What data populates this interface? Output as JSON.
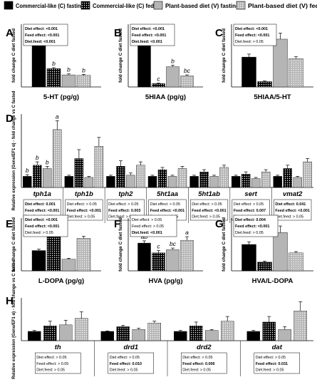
{
  "legend": [
    {
      "label": "Commercial-like (C) fasting",
      "color": "#000000",
      "pattern": "solid"
    },
    {
      "label": "Commercial-like (C) fed",
      "color": "#000000",
      "pattern": "dots-white"
    },
    {
      "label": "Plant-based diet (V) fasting",
      "color": "#bdbdbd",
      "pattern": "solid"
    },
    {
      "label": "Plant-based diet (V) fed",
      "color": "#bdbdbd",
      "pattern": "dots-white"
    }
  ],
  "chart_data": [
    {
      "panel": "A",
      "type": "bar",
      "xlabel": "5-HT (pg/g)",
      "ylabel": "fold change C diet fasted",
      "ylim": [
        0,
        1.3
      ],
      "categories": [
        ""
      ],
      "series": [
        {
          "name": "Commercial-like (C) fasting",
          "values": [
            1.0
          ],
          "err": [
            0.07
          ],
          "letters": [
            "a"
          ]
        },
        {
          "name": "Commercial-like (C) fed",
          "values": [
            0.38
          ],
          "err": [
            0.02
          ],
          "letters": [
            "b"
          ]
        },
        {
          "name": "Plant-based diet (V) fasting",
          "values": [
            0.25
          ],
          "err": [
            0.02
          ],
          "letters": [
            "b"
          ]
        },
        {
          "name": "Plant-based diet (V) fed",
          "values": [
            0.24
          ],
          "err": [
            0.02
          ],
          "letters": [
            "b"
          ]
        }
      ],
      "stats": [
        {
          "label": "Diet effect: ",
          "value": "<0.001",
          "bold": true
        },
        {
          "label": "Feed effect: ",
          "value": "<0.001",
          "bold": true
        },
        {
          "label": "Diet.feed: ",
          "value": "<0.001",
          "bold": true
        }
      ]
    },
    {
      "panel": "B",
      "type": "bar",
      "xlabel": "5HIAA (pg/g)",
      "ylabel": "fold change C diet fasted",
      "ylim": [
        0,
        1.3
      ],
      "categories": [
        ""
      ],
      "series": [
        {
          "name": "Commercial-like (C) fasting",
          "values": [
            1.0
          ],
          "err": [
            0.1
          ],
          "letters": [
            "a"
          ]
        },
        {
          "name": "Commercial-like (C) fed",
          "values": [
            0.07
          ],
          "err": [
            0.01
          ],
          "letters": [
            "c"
          ]
        },
        {
          "name": "Plant-based diet (V) fasting",
          "values": [
            0.42
          ],
          "err": [
            0.03
          ],
          "letters": [
            "b"
          ]
        },
        {
          "name": "Plant-based diet (V) fed",
          "values": [
            0.23
          ],
          "err": [
            0.02
          ],
          "letters": [
            "bc"
          ]
        }
      ],
      "stats": [
        {
          "label": "Diet effect: ",
          "value": "<0.001",
          "bold": true
        },
        {
          "label": "Feed effect: ",
          "value": "<0.001",
          "bold": true
        },
        {
          "label": "Diet.feed: ",
          "value": "<0.001",
          "bold": true
        }
      ]
    },
    {
      "panel": "C",
      "type": "bar",
      "xlabel": "5HIAA/5-HT",
      "ylabel": "fold change C diet fasted",
      "ylim": [
        0,
        2.1
      ],
      "categories": [
        ""
      ],
      "series": [
        {
          "name": "Commercial-like (C) fasting",
          "values": [
            1.0
          ],
          "err": [
            0.1
          ],
          "letters": [
            ""
          ]
        },
        {
          "name": "Commercial-like (C) fed",
          "values": [
            0.18
          ],
          "err": [
            0.02
          ],
          "letters": [
            ""
          ]
        },
        {
          "name": "Plant-based diet (V) fasting",
          "values": [
            1.6
          ],
          "err": [
            0.2
          ],
          "letters": [
            ""
          ]
        },
        {
          "name": "Plant-based diet (V) fed",
          "values": [
            0.95
          ],
          "err": [
            0.06
          ],
          "letters": [
            ""
          ]
        }
      ],
      "stats": [
        {
          "label": "Diet effect: ",
          "value": "<0.001",
          "bold": true
        },
        {
          "label": "Feed effect: ",
          "value": "<0.001",
          "bold": true
        },
        {
          "label": "Diet.feed: ",
          "value": "> 0.05",
          "bold": false
        }
      ]
    },
    {
      "panel": "D",
      "type": "bar",
      "ylabel": "Relative expression (Gene/EF1 α) - fold change vs C fasted",
      "ylim": [
        0,
        6.6
      ],
      "categories": [
        "tph1a",
        "tph1b",
        "tph2",
        "5ht1aa",
        "5ht1ab",
        "sert",
        "vmat2"
      ],
      "series": [
        {
          "name": "Commercial-like (C) fasting",
          "values": [
            1.0,
            1.0,
            1.0,
            1.0,
            1.0,
            1.0,
            1.0
          ],
          "err": [
            0.15,
            0.1,
            0.1,
            0.1,
            0.1,
            0.1,
            0.1
          ],
          "letters": [
            "b",
            "",
            "",
            "",
            "",
            "",
            ""
          ]
        },
        {
          "name": "Commercial-like (C) fed",
          "values": [
            2.0,
            2.6,
            1.9,
            1.6,
            1.4,
            1.2,
            1.7
          ],
          "err": [
            0.3,
            0.8,
            0.5,
            0.2,
            0.2,
            0.2,
            0.3
          ],
          "letters": [
            "b",
            "",
            "",
            "",
            "",
            "",
            ""
          ]
        },
        {
          "name": "Plant-based diet (V) fasting",
          "values": [
            1.7,
            0.9,
            1.1,
            1.0,
            1.0,
            0.8,
            0.9
          ],
          "err": [
            0.2,
            0.1,
            0.2,
            0.1,
            0.1,
            0.1,
            0.1
          ],
          "letters": [
            "b",
            "",
            "",
            "",
            "",
            "",
            ""
          ]
        },
        {
          "name": "Plant-based diet (V) fed",
          "values": [
            5.2,
            3.7,
            2.0,
            1.7,
            1.8,
            1.4,
            2.3
          ],
          "err": [
            0.8,
            0.8,
            0.3,
            0.2,
            0.2,
            0.2,
            0.3
          ],
          "letters": [
            "a",
            "",
            "",
            "",
            "",
            "",
            ""
          ]
        }
      ],
      "stats": [
        [
          {
            "label": "Diet effect: ",
            "value": "0.001",
            "bold": true
          },
          {
            "label": "Feed effect: ",
            "value": "<0.001",
            "bold": true
          },
          {
            "label": "Diet.feed: ",
            "value": "0.029",
            "bold": true
          }
        ],
        [
          {
            "label": "Diet effect: ",
            "value": "> 0.05",
            "bold": false
          },
          {
            "label": "Feed effect: ",
            "value": "<0.001",
            "bold": true
          },
          {
            "label": "Diet.feed: ",
            "value": "> 0.05",
            "bold": false
          }
        ],
        [
          {
            "label": "Diet effect: ",
            "value": "> 0.05",
            "bold": false
          },
          {
            "label": "Feed effect: ",
            "value": "0.003",
            "bold": true
          },
          {
            "label": "Diet.feed: ",
            "value": "> 0.05",
            "bold": false
          }
        ],
        [
          {
            "label": "Diet effect: ",
            "value": "> 0.05",
            "bold": false
          },
          {
            "label": "Feed effect: ",
            "value": "<0.001",
            "bold": true
          },
          {
            "label": "Diet.feed: ",
            "value": "> 0.05",
            "bold": false
          }
        ],
        [
          {
            "label": "Diet effect: ",
            "value": "> 0.05",
            "bold": false
          },
          {
            "label": "Feed effect: ",
            "value": "<0.001",
            "bold": true
          },
          {
            "label": "Diet.feed: ",
            "value": "> 0.05",
            "bold": false
          }
        ],
        [
          {
            "label": "Diet effect: ",
            "value": "> 0.05",
            "bold": false
          },
          {
            "label": "Feed effect: ",
            "value": "0.007",
            "bold": true
          },
          {
            "label": "Diet.feed: ",
            "value": "> 0.05",
            "bold": false
          }
        ],
        [
          {
            "label": "Diet effect: ",
            "value": "0.041",
            "bold": true
          },
          {
            "label": "Feed effect: ",
            "value": "<0.001",
            "bold": true
          },
          {
            "label": "Diet.feed: ",
            "value": "> 0.05",
            "bold": false
          }
        ]
      ]
    },
    {
      "panel": "E",
      "type": "bar",
      "xlabel": "L-DOPA (pg/g)",
      "ylabel": "fold change C diet fasted",
      "ylim": [
        0,
        2.6
      ],
      "categories": [
        ""
      ],
      "series": [
        {
          "name": "Commercial-like (C) fasting",
          "values": [
            1.0
          ],
          "err": [
            0.07
          ],
          "letters": [
            ""
          ]
        },
        {
          "name": "Commercial-like (C) fed",
          "values": [
            2.0
          ],
          "err": [
            0.08
          ],
          "letters": [
            ""
          ]
        },
        {
          "name": "Plant-based diet (V) fasting",
          "values": [
            0.57
          ],
          "err": [
            0.05
          ],
          "letters": [
            ""
          ]
        },
        {
          "name": "Plant-based diet (V) fed",
          "values": [
            1.6
          ],
          "err": [
            0.1
          ],
          "letters": [
            ""
          ]
        }
      ],
      "stats": [
        {
          "label": "Diet effect: ",
          "value": "<0.001",
          "bold": true
        },
        {
          "label": "Feed effect: ",
          "value": "<0.001",
          "bold": true
        },
        {
          "label": "Diet.feed: ",
          "value": "> 0.05",
          "bold": false
        }
      ]
    },
    {
      "panel": "F",
      "type": "bar",
      "xlabel": "HVA (pg/g)",
      "ylabel": "fold change C diet fasted",
      "ylim": [
        0,
        1.9
      ],
      "categories": [
        ""
      ],
      "series": [
        {
          "name": "Commercial-like (C) fasting",
          "values": [
            1.0
          ],
          "err": [
            0.08
          ],
          "letters": [
            "ab"
          ]
        },
        {
          "name": "Commercial-like (C) fed",
          "values": [
            0.65
          ],
          "err": [
            0.08
          ],
          "letters": [
            "c"
          ]
        },
        {
          "name": "Plant-based diet (V) fasting",
          "values": [
            0.76
          ],
          "err": [
            0.06
          ],
          "letters": [
            "bc"
          ]
        },
        {
          "name": "Plant-based diet (V) fed",
          "values": [
            1.1
          ],
          "err": [
            0.13
          ],
          "letters": [
            "a"
          ]
        }
      ],
      "stats": [
        {
          "label": "Diet effect: ",
          "value": "> 0.05",
          "bold": false
        },
        {
          "label": "Feed effect: ",
          "value": "> 0.05",
          "bold": false
        },
        {
          "label": "Diet.feed: ",
          "value": "<0.001",
          "bold": true
        }
      ]
    },
    {
      "panel": "G",
      "type": "bar",
      "xlabel": "HVA/L-DOPA",
      "ylabel": "fold change C diet fasted",
      "ylim": [
        0,
        2.0
      ],
      "categories": [
        ""
      ],
      "series": [
        {
          "name": "Commercial-like (C) fasting",
          "values": [
            1.0
          ],
          "err": [
            0.1
          ],
          "letters": [
            ""
          ]
        },
        {
          "name": "Commercial-like (C) fed",
          "values": [
            0.33
          ],
          "err": [
            0.04
          ],
          "letters": [
            ""
          ]
        },
        {
          "name": "Plant-based diet (V) fasting",
          "values": [
            1.45
          ],
          "err": [
            0.25
          ],
          "letters": [
            ""
          ]
        },
        {
          "name": "Plant-based diet (V) fed",
          "values": [
            0.68
          ],
          "err": [
            0.05
          ],
          "letters": [
            ""
          ]
        }
      ],
      "stats": [
        {
          "label": "Diet effect: ",
          "value": "0.004",
          "bold": true
        },
        {
          "label": "Feed effect: ",
          "value": "<0.001",
          "bold": true
        },
        {
          "label": "Diet.feed: ",
          "value": "> 0.05",
          "bold": false
        }
      ]
    },
    {
      "panel": "H",
      "type": "bar",
      "ylabel": "Relative expression (Gene/EF1 α) - fold change vs C fasted",
      "ylim": [
        0,
        4.6
      ],
      "categories": [
        "th",
        "drd1",
        "drd2",
        "dat"
      ],
      "series": [
        {
          "name": "Commercial-like (C) fasting",
          "values": [
            1.0,
            1.0,
            1.0,
            1.0
          ],
          "err": [
            0.1,
            0.05,
            0.1,
            0.1
          ],
          "letters": [
            "",
            "",
            "",
            ""
          ]
        },
        {
          "name": "Commercial-like (C) fed",
          "values": [
            1.6,
            1.5,
            1.6,
            2.0
          ],
          "err": [
            0.5,
            0.15,
            0.4,
            0.6
          ],
          "letters": [
            "",
            "",
            "",
            ""
          ]
        },
        {
          "name": "Plant-based diet (V) fasting",
          "values": [
            1.7,
            1.2,
            1.1,
            1.2
          ],
          "err": [
            0.5,
            0.15,
            0.1,
            0.3
          ],
          "letters": [
            "",
            "",
            "",
            ""
          ]
        },
        {
          "name": "Plant-based diet (V) fed",
          "values": [
            2.4,
            1.9,
            2.1,
            3.2
          ],
          "err": [
            0.7,
            0.2,
            0.5,
            1.0
          ],
          "letters": [
            "",
            "",
            "",
            ""
          ]
        }
      ],
      "stats": [
        [
          {
            "label": "Diet effect: ",
            "value": "> 0.05",
            "bold": false
          },
          {
            "label": "Feed effect: ",
            "value": "> 0.05",
            "bold": false
          },
          {
            "label": "Diet.feed: ",
            "value": "> 0.05",
            "bold": false
          }
        ],
        [
          {
            "label": "Diet effect: ",
            "value": "> 0.05",
            "bold": false
          },
          {
            "label": "Feed effect: ",
            "value": "0.010",
            "bold": true
          },
          {
            "label": "Diet.feed: ",
            "value": "> 0.05",
            "bold": false
          }
        ],
        [
          {
            "label": "Diet effect: ",
            "value": "> 0.05",
            "bold": false
          },
          {
            "label": "Feed effect: ",
            "value": "0.006",
            "bold": true
          },
          {
            "label": "Diet.feed: ",
            "value": "> 0.05",
            "bold": false
          }
        ],
        [
          {
            "label": "Diet effect: ",
            "value": "> 0.05",
            "bold": false
          },
          {
            "label": "Feed effect: ",
            "value": "0.031",
            "bold": true
          },
          {
            "label": "Diet.feed: ",
            "value": "> 0.05",
            "bold": false
          }
        ]
      ]
    }
  ]
}
